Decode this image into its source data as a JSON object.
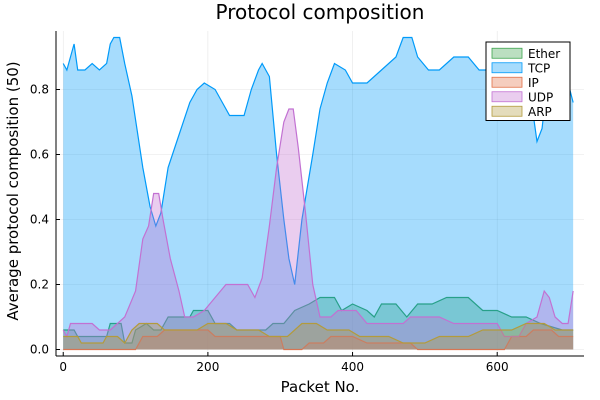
{
  "chart_data": {
    "type": "area",
    "title": "Protocol composition",
    "xlabel": "Packet No.",
    "ylabel": "Average protocol composition (50)",
    "xlim": [
      -10,
      720
    ],
    "ylim": [
      -0.02,
      0.98
    ],
    "x_ticks": [
      0,
      200,
      400,
      600
    ],
    "y_ticks": [
      0.0,
      0.2,
      0.4,
      0.6,
      0.8
    ],
    "x_tick_labels": [
      "0",
      "200",
      "400",
      "600"
    ],
    "y_tick_labels": [
      "0.0",
      "0.2",
      "0.4",
      "0.6",
      "0.8"
    ],
    "grid": true,
    "legend_position": "top-right",
    "series": [
      {
        "name": "Ether",
        "fill": "#3da44d",
        "line": "#3da44d",
        "points": [
          [
            0,
            0.06
          ],
          [
            15,
            0.06
          ],
          [
            20,
            0.04
          ],
          [
            60,
            0.04
          ],
          [
            65,
            0.08
          ],
          [
            80,
            0.08
          ],
          [
            85,
            0.02
          ],
          [
            95,
            0.02
          ],
          [
            100,
            0.06
          ],
          [
            115,
            0.08
          ],
          [
            125,
            0.06
          ],
          [
            135,
            0.06
          ],
          [
            145,
            0.1
          ],
          [
            175,
            0.1
          ],
          [
            180,
            0.12
          ],
          [
            200,
            0.12
          ],
          [
            210,
            0.08
          ],
          [
            230,
            0.08
          ],
          [
            240,
            0.06
          ],
          [
            280,
            0.06
          ],
          [
            290,
            0.08
          ],
          [
            305,
            0.08
          ],
          [
            320,
            0.12
          ],
          [
            340,
            0.14
          ],
          [
            355,
            0.16
          ],
          [
            375,
            0.16
          ],
          [
            385,
            0.12
          ],
          [
            400,
            0.14
          ],
          [
            420,
            0.12
          ],
          [
            430,
            0.1
          ],
          [
            440,
            0.14
          ],
          [
            460,
            0.14
          ],
          [
            475,
            0.1
          ],
          [
            490,
            0.14
          ],
          [
            510,
            0.14
          ],
          [
            530,
            0.16
          ],
          [
            560,
            0.16
          ],
          [
            580,
            0.12
          ],
          [
            600,
            0.12
          ],
          [
            620,
            0.1
          ],
          [
            640,
            0.1
          ],
          [
            660,
            0.08
          ],
          [
            690,
            0.06
          ],
          [
            705,
            0.06
          ]
        ]
      },
      {
        "name": "TCP",
        "fill": "#009af9",
        "line": "#009af9",
        "points": [
          [
            0,
            0.88
          ],
          [
            5,
            0.86
          ],
          [
            10,
            0.9
          ],
          [
            15,
            0.94
          ],
          [
            20,
            0.86
          ],
          [
            30,
            0.86
          ],
          [
            40,
            0.88
          ],
          [
            50,
            0.86
          ],
          [
            60,
            0.88
          ],
          [
            65,
            0.94
          ],
          [
            70,
            0.96
          ],
          [
            78,
            0.96
          ],
          [
            85,
            0.88
          ],
          [
            95,
            0.78
          ],
          [
            110,
            0.56
          ],
          [
            120,
            0.44
          ],
          [
            128,
            0.38
          ],
          [
            135,
            0.42
          ],
          [
            145,
            0.56
          ],
          [
            160,
            0.66
          ],
          [
            175,
            0.76
          ],
          [
            185,
            0.8
          ],
          [
            195,
            0.82
          ],
          [
            210,
            0.8
          ],
          [
            220,
            0.76
          ],
          [
            230,
            0.72
          ],
          [
            250,
            0.72
          ],
          [
            260,
            0.8
          ],
          [
            270,
            0.86
          ],
          [
            275,
            0.88
          ],
          [
            285,
            0.84
          ],
          [
            295,
            0.6
          ],
          [
            305,
            0.4
          ],
          [
            312,
            0.28
          ],
          [
            320,
            0.2
          ],
          [
            330,
            0.4
          ],
          [
            345,
            0.6
          ],
          [
            355,
            0.74
          ],
          [
            365,
            0.82
          ],
          [
            375,
            0.88
          ],
          [
            390,
            0.86
          ],
          [
            400,
            0.82
          ],
          [
            420,
            0.82
          ],
          [
            440,
            0.86
          ],
          [
            460,
            0.9
          ],
          [
            470,
            0.96
          ],
          [
            482,
            0.96
          ],
          [
            490,
            0.9
          ],
          [
            505,
            0.86
          ],
          [
            520,
            0.86
          ],
          [
            540,
            0.9
          ],
          [
            560,
            0.9
          ],
          [
            575,
            0.86
          ],
          [
            590,
            0.86
          ],
          [
            605,
            0.88
          ],
          [
            625,
            0.88
          ],
          [
            640,
            0.82
          ],
          [
            650,
            0.72
          ],
          [
            655,
            0.64
          ],
          [
            662,
            0.68
          ],
          [
            670,
            0.84
          ],
          [
            685,
            0.88
          ],
          [
            698,
            0.82
          ],
          [
            705,
            0.76
          ]
        ]
      },
      {
        "name": "IP",
        "fill": "#e26f46",
        "line": "#e26f46",
        "points": [
          [
            0,
            0.0
          ],
          [
            100,
            0.0
          ],
          [
            110,
            0.04
          ],
          [
            130,
            0.04
          ],
          [
            140,
            0.06
          ],
          [
            200,
            0.06
          ],
          [
            210,
            0.04
          ],
          [
            300,
            0.04
          ],
          [
            305,
            0.0
          ],
          [
            330,
            0.0
          ],
          [
            340,
            0.02
          ],
          [
            360,
            0.02
          ],
          [
            370,
            0.04
          ],
          [
            400,
            0.04
          ],
          [
            420,
            0.02
          ],
          [
            480,
            0.02
          ],
          [
            490,
            0.0
          ],
          [
            610,
            0.0
          ],
          [
            620,
            0.04
          ],
          [
            640,
            0.04
          ],
          [
            650,
            0.06
          ],
          [
            675,
            0.06
          ],
          [
            685,
            0.04
          ],
          [
            705,
            0.04
          ]
        ]
      },
      {
        "name": "UDP",
        "fill": "#c271d2",
        "line": "#c271d2",
        "points": [
          [
            0,
            0.06
          ],
          [
            5,
            0.04
          ],
          [
            10,
            0.08
          ],
          [
            40,
            0.08
          ],
          [
            50,
            0.06
          ],
          [
            65,
            0.06
          ],
          [
            75,
            0.08
          ],
          [
            85,
            0.1
          ],
          [
            100,
            0.18
          ],
          [
            110,
            0.34
          ],
          [
            118,
            0.38
          ],
          [
            125,
            0.48
          ],
          [
            132,
            0.48
          ],
          [
            138,
            0.4
          ],
          [
            148,
            0.28
          ],
          [
            160,
            0.18
          ],
          [
            168,
            0.1
          ],
          [
            180,
            0.1
          ],
          [
            195,
            0.12
          ],
          [
            210,
            0.16
          ],
          [
            225,
            0.2
          ],
          [
            255,
            0.2
          ],
          [
            265,
            0.16
          ],
          [
            275,
            0.22
          ],
          [
            285,
            0.38
          ],
          [
            295,
            0.56
          ],
          [
            305,
            0.7
          ],
          [
            312,
            0.74
          ],
          [
            318,
            0.74
          ],
          [
            325,
            0.62
          ],
          [
            335,
            0.42
          ],
          [
            345,
            0.2
          ],
          [
            355,
            0.1
          ],
          [
            370,
            0.1
          ],
          [
            380,
            0.12
          ],
          [
            405,
            0.12
          ],
          [
            420,
            0.08
          ],
          [
            470,
            0.08
          ],
          [
            480,
            0.1
          ],
          [
            520,
            0.1
          ],
          [
            540,
            0.08
          ],
          [
            600,
            0.08
          ],
          [
            610,
            0.04
          ],
          [
            630,
            0.04
          ],
          [
            640,
            0.08
          ],
          [
            655,
            0.1
          ],
          [
            665,
            0.18
          ],
          [
            672,
            0.16
          ],
          [
            680,
            0.1
          ],
          [
            690,
            0.08
          ],
          [
            698,
            0.08
          ],
          [
            705,
            0.18
          ]
        ]
      },
      {
        "name": "ARP",
        "fill": "#b39b3c",
        "line": "#b39b3c",
        "points": [
          [
            0,
            0.04
          ],
          [
            20,
            0.04
          ],
          [
            25,
            0.02
          ],
          [
            55,
            0.02
          ],
          [
            60,
            0.04
          ],
          [
            75,
            0.04
          ],
          [
            85,
            0.02
          ],
          [
            95,
            0.06
          ],
          [
            105,
            0.08
          ],
          [
            130,
            0.08
          ],
          [
            140,
            0.06
          ],
          [
            185,
            0.06
          ],
          [
            200,
            0.08
          ],
          [
            225,
            0.08
          ],
          [
            240,
            0.06
          ],
          [
            270,
            0.06
          ],
          [
            285,
            0.04
          ],
          [
            310,
            0.04
          ],
          [
            330,
            0.08
          ],
          [
            350,
            0.08
          ],
          [
            365,
            0.06
          ],
          [
            395,
            0.06
          ],
          [
            410,
            0.04
          ],
          [
            450,
            0.04
          ],
          [
            470,
            0.02
          ],
          [
            500,
            0.02
          ],
          [
            520,
            0.04
          ],
          [
            560,
            0.04
          ],
          [
            580,
            0.06
          ],
          [
            620,
            0.06
          ],
          [
            640,
            0.08
          ],
          [
            665,
            0.08
          ],
          [
            680,
            0.06
          ],
          [
            705,
            0.06
          ]
        ]
      }
    ]
  }
}
